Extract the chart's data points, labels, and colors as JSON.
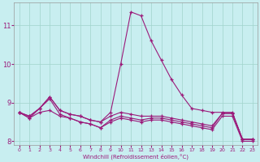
{
  "xlabel": "Windchill (Refroidissement éolien,°C)",
  "x_values": [
    0,
    1,
    2,
    3,
    4,
    5,
    6,
    7,
    8,
    9,
    10,
    11,
    12,
    13,
    14,
    15,
    16,
    17,
    18,
    19,
    20,
    21,
    22,
    23
  ],
  "line1": [
    8.75,
    8.65,
    8.85,
    9.15,
    8.8,
    8.7,
    8.65,
    8.55,
    8.5,
    8.75,
    10.0,
    11.35,
    11.25,
    10.6,
    10.1,
    9.6,
    9.2,
    8.85,
    8.8,
    8.75,
    8.75,
    8.75,
    8.05,
    8.05
  ],
  "line2": [
    8.75,
    8.65,
    8.85,
    9.15,
    8.8,
    8.7,
    8.65,
    8.55,
    8.5,
    8.65,
    8.75,
    8.7,
    8.65,
    8.65,
    8.65,
    8.6,
    8.55,
    8.5,
    8.45,
    8.4,
    8.72,
    8.72,
    8.05,
    8.05
  ],
  "line3": [
    8.75,
    8.6,
    8.85,
    9.1,
    8.7,
    8.6,
    8.5,
    8.45,
    8.35,
    8.55,
    8.65,
    8.6,
    8.55,
    8.6,
    8.6,
    8.55,
    8.5,
    8.45,
    8.4,
    8.35,
    8.72,
    8.72,
    8.05,
    8.05
  ],
  "line4": [
    8.75,
    8.6,
    8.75,
    8.8,
    8.65,
    8.6,
    8.5,
    8.45,
    8.35,
    8.5,
    8.6,
    8.55,
    8.5,
    8.55,
    8.55,
    8.5,
    8.45,
    8.4,
    8.35,
    8.3,
    8.65,
    8.65,
    8.0,
    8.0
  ],
  "line_color": "#9b1a7a",
  "bg_color": "#c8eef0",
  "grid_color": "#a0d4cc",
  "ylim": [
    7.9,
    11.6
  ],
  "yticks": [
    8,
    9,
    10,
    11
  ],
  "xlim": [
    -0.5,
    23.5
  ]
}
